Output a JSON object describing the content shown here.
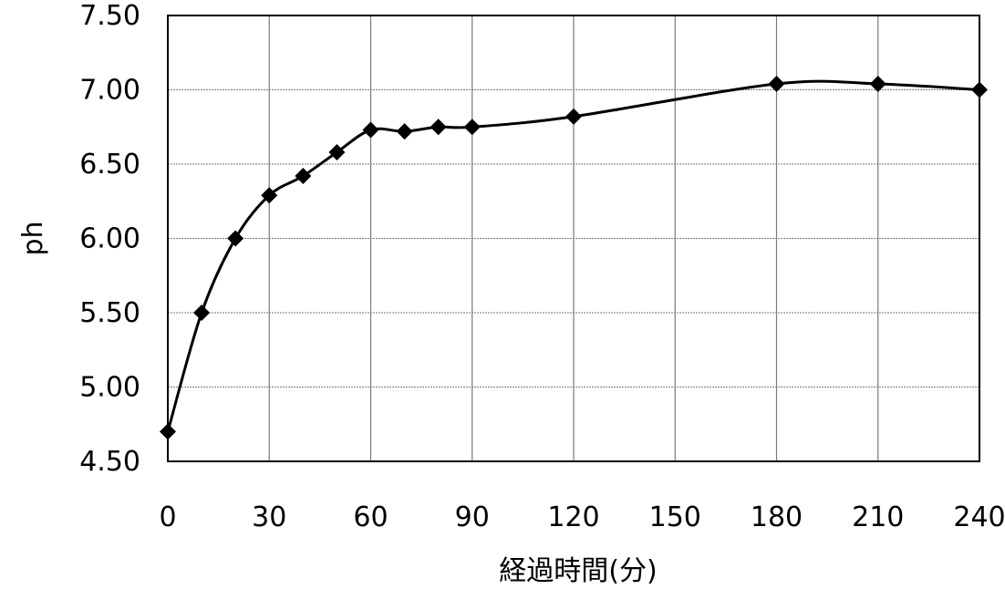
{
  "chart_data": {
    "type": "line",
    "title": "",
    "xlabel": "経過時間(分)",
    "ylabel": "ph",
    "xlim": [
      0,
      240
    ],
    "ylim": [
      4.5,
      7.5
    ],
    "x_ticks": [
      0,
      30,
      60,
      90,
      120,
      150,
      180,
      210,
      240
    ],
    "x_tick_labels": [
      "0",
      "30",
      "60",
      "90",
      "120",
      "150",
      "180",
      "210",
      "240"
    ],
    "y_ticks": [
      4.5,
      5.0,
      5.5,
      6.0,
      6.5,
      7.0,
      7.5
    ],
    "y_tick_labels": [
      "4.50",
      "5.00",
      "5.50",
      "6.00",
      "6.50",
      "7.00",
      "7.50"
    ],
    "grid": true,
    "legend": "none",
    "marker": "diamond",
    "line_style": "smooth",
    "series": [
      {
        "color": "#000000",
        "x": [
          0,
          10,
          20,
          30,
          40,
          50,
          60,
          70,
          80,
          90,
          120,
          180,
          210,
          240
        ],
        "y": [
          4.7,
          5.5,
          6.0,
          6.29,
          6.42,
          6.58,
          6.73,
          6.72,
          6.75,
          6.75,
          6.82,
          7.04,
          7.04,
          7.0
        ]
      }
    ]
  }
}
